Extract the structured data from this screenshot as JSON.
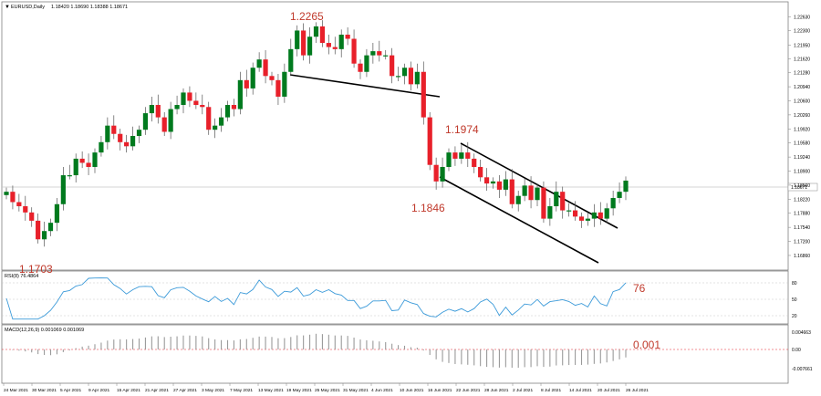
{
  "symbol_label": "EURUSD,Daily",
  "ohlc_readout": "1.18420 1.18690 1.18388 1.18671",
  "rsi_label": "RSI(8) 76.4864",
  "macd_label": "MACD(12,26,9) 0.001069 0.001069",
  "colors": {
    "bull": "#007a1e",
    "bear": "#e8202a",
    "annotation": "#c0392b",
    "line": "#3b9ad9",
    "signal": "#e8202a",
    "grid": "#c8c8c8"
  },
  "chart_data": [
    {
      "type": "candlestick",
      "price_axis": {
        "ylim": [
          1.1655,
          1.2295
        ],
        "ticks": [
          "1.22970",
          "1.22630",
          "1.22300",
          "1.21950",
          "1.21620",
          "1.21280",
          "1.20940",
          "1.20600",
          "1.20260",
          "1.19920",
          "1.19580",
          "1.19240",
          "1.18900",
          "1.18560",
          "1.18220",
          "1.17880",
          "1.17540",
          "1.17200",
          "1.16860",
          "1.16520"
        ]
      },
      "current_price_label": "1.18671",
      "date_labels": [
        "24 Mar 2021",
        "30 Mar 2021",
        "5 Apr 2021",
        "9 Apr 2021",
        "15 Apr 2021",
        "21 Apr 2021",
        "27 Apr 2021",
        "3 May 2021",
        "7 May 2021",
        "13 May 2021",
        "19 May 2021",
        "25 May 2021",
        "31 May 2021",
        "4 Jun 2021",
        "10 Jun 2021",
        "16 Jun 2021",
        "22 Jun 2021",
        "28 Jun 2021",
        "2 Jul 2021",
        "8 Jul 2021",
        "14 Jul 2021",
        "20 Jul 2021",
        "26 Jul 2021"
      ],
      "annotations": [
        "1.2265",
        "1.1974",
        "1.1846",
        "1.1703"
      ],
      "closes": [
        1.184,
        1.1815,
        1.1805,
        1.179,
        1.177,
        1.1725,
        1.1745,
        1.1765,
        1.181,
        1.188,
        1.188,
        1.192,
        1.191,
        1.19,
        1.1935,
        1.196,
        1.2,
        1.198,
        1.196,
        1.195,
        1.1975,
        1.199,
        1.203,
        1.205,
        1.202,
        1.1985,
        1.204,
        1.205,
        1.208,
        1.206,
        1.205,
        1.2045,
        1.199,
        1.2,
        1.202,
        1.205,
        1.204,
        1.211,
        1.209,
        1.214,
        1.216,
        1.212,
        1.211,
        1.207,
        1.213,
        1.2185,
        1.223,
        1.217,
        1.2215,
        1.224,
        1.22,
        1.219,
        1.2185,
        1.222,
        1.221,
        1.215,
        1.213,
        1.217,
        1.218,
        1.217,
        1.217,
        1.212,
        1.212,
        1.214,
        1.21,
        1.213,
        1.202,
        1.1905,
        1.1865,
        1.19,
        1.1935,
        1.192,
        1.1935,
        1.192,
        1.19,
        1.1875,
        1.186,
        1.1865,
        1.1845,
        1.187,
        1.181,
        1.183,
        1.1855,
        1.182,
        1.185,
        1.1775,
        1.1805,
        1.184,
        1.1795,
        1.1795,
        1.178,
        1.177,
        1.1775,
        1.179,
        1.1775,
        1.18,
        1.1825,
        1.184,
        1.1867
      ],
      "rsi": {
        "ylim": [
          0,
          100
        ],
        "levels": [
          "80",
          "50",
          "20"
        ],
        "annotation": "76"
      },
      "macd": {
        "annotation": "0.001",
        "ticks": [
          "0.004663",
          "0.00",
          "-0.007661"
        ]
      }
    }
  ]
}
